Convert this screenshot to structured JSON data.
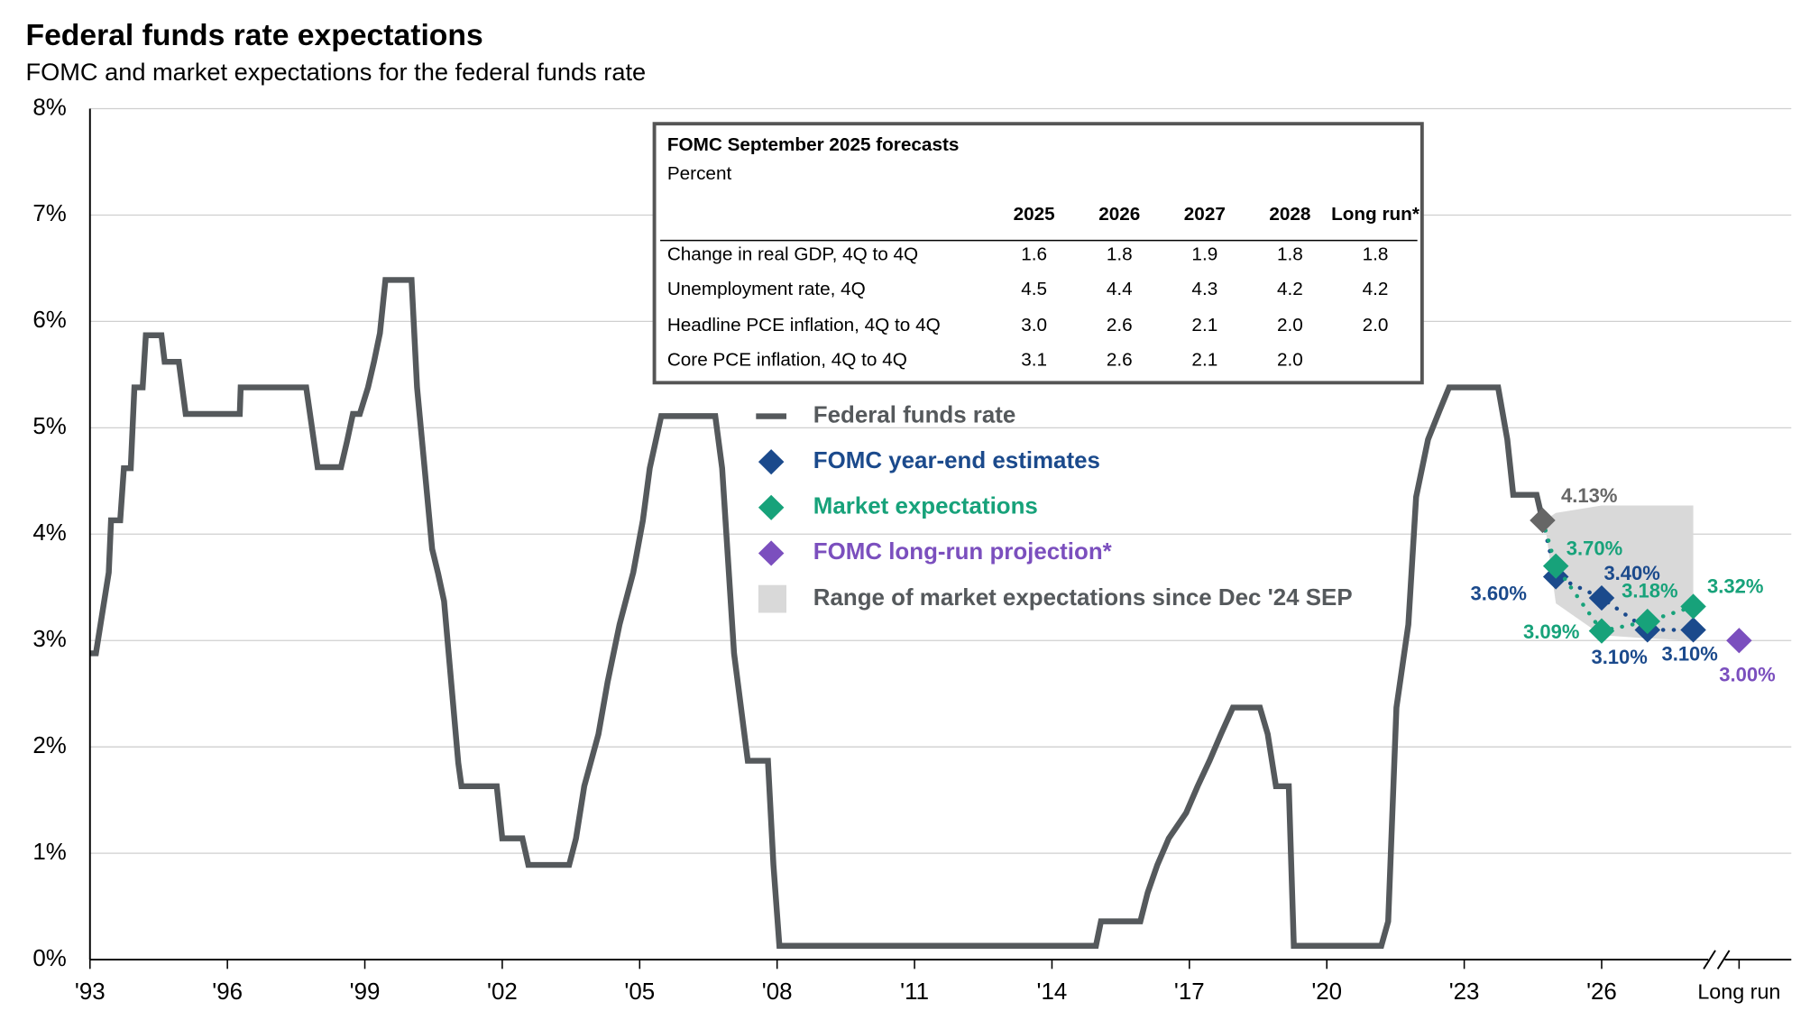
{
  "chart_data": {
    "type": "line",
    "title": "Federal funds rate expectations",
    "subtitle": "FOMC and market expectations for the federal funds rate",
    "xlim": [
      1993,
      2030.14
    ],
    "xticks": [
      {
        "value": 1993,
        "label": "'93"
      },
      {
        "value": 1996,
        "label": "'96"
      },
      {
        "value": 1999,
        "label": "'99"
      },
      {
        "value": 2002,
        "label": "'02"
      },
      {
        "value": 2005,
        "label": "'05"
      },
      {
        "value": 2008,
        "label": "'08"
      },
      {
        "value": 2011,
        "label": "'11"
      },
      {
        "value": 2014,
        "label": "'14"
      },
      {
        "value": 2017,
        "label": "'17"
      },
      {
        "value": 2020,
        "label": "'20"
      },
      {
        "value": 2023,
        "label": "'23"
      },
      {
        "value": 2026,
        "label": "'26"
      },
      {
        "value": 2029,
        "label": "Long run"
      }
    ],
    "ylim": [
      0,
      8
    ],
    "yticks": [
      {
        "value": 0,
        "label": "0%"
      },
      {
        "value": 1,
        "label": "1%"
      },
      {
        "value": 2,
        "label": "2%"
      },
      {
        "value": 3,
        "label": "3%"
      },
      {
        "value": 4,
        "label": "4%"
      },
      {
        "value": 5,
        "label": "5%"
      },
      {
        "value": 6,
        "label": "6%"
      },
      {
        "value": 7,
        "label": "7%"
      },
      {
        "value": 8,
        "label": "8%"
      }
    ],
    "grid": true,
    "series": [
      {
        "name": "Federal funds rate",
        "type": "line",
        "color": "#55595c",
        "x": [
          1993.0,
          1993.13,
          1993.41,
          1993.46,
          1993.66,
          1993.74,
          1993.89,
          1993.97,
          1994.15,
          1994.22,
          1994.56,
          1994.63,
          1994.94,
          1995.09,
          1996.27,
          1996.29,
          1997.72,
          1997.97,
          1998.48,
          1998.61,
          1998.74,
          1998.89,
          1999.07,
          1999.2,
          1999.33,
          1999.45,
          2000.02,
          2000.14,
          2000.47,
          2000.6,
          2000.73,
          2000.93,
          2001.04,
          2001.11,
          2001.88,
          2002.0,
          2002.44,
          2002.57,
          2003.46,
          2003.61,
          2003.79,
          2004.1,
          2004.3,
          2004.56,
          2004.86,
          2005.07,
          2005.22,
          2005.47,
          2006.65,
          2006.8,
          2007.06,
          2007.36,
          2007.8,
          2007.92,
          2008.05,
          2014.96,
          2015.07,
          2015.93,
          2016.09,
          2016.3,
          2016.55,
          2016.93,
          2017.18,
          2017.44,
          2017.69,
          2017.95,
          2018.54,
          2018.71,
          2018.89,
          2019.17,
          2019.28,
          2021.19,
          2021.34,
          2021.52,
          2021.78,
          2021.95,
          2022.21,
          2022.46,
          2022.67,
          2023.74,
          2023.94,
          2024.07,
          2024.58,
          2024.71
        ],
        "values": [
          2.88,
          2.88,
          3.64,
          4.13,
          4.13,
          4.62,
          4.62,
          5.38,
          5.38,
          5.87,
          5.87,
          5.62,
          5.62,
          5.13,
          5.13,
          5.38,
          5.38,
          4.63,
          4.63,
          4.87,
          5.13,
          5.13,
          5.38,
          5.62,
          5.89,
          6.39,
          6.39,
          5.38,
          3.86,
          3.63,
          3.37,
          2.39,
          1.85,
          1.63,
          1.63,
          1.14,
          1.14,
          0.89,
          0.89,
          1.14,
          1.63,
          2.12,
          2.61,
          3.15,
          3.64,
          4.13,
          4.62,
          5.11,
          5.11,
          4.62,
          2.88,
          1.87,
          1.87,
          0.89,
          0.13,
          0.13,
          0.36,
          0.36,
          0.63,
          0.89,
          1.14,
          1.38,
          1.63,
          1.87,
          2.12,
          2.37,
          2.37,
          2.12,
          1.63,
          1.63,
          0.13,
          0.13,
          0.36,
          2.37,
          3.15,
          4.35,
          4.89,
          5.16,
          5.38,
          5.38,
          4.89,
          4.37,
          4.37,
          4.13
        ]
      },
      {
        "name": "FOMC year-end estimates",
        "type": "scatter",
        "color": "#1b4a8c",
        "x": [
          2025,
          2026,
          2027,
          2028
        ],
        "values": [
          3.6,
          3.4,
          3.1,
          3.1
        ],
        "value_labels": [
          "3.60%",
          "3.40%",
          "3.10%",
          "3.10%"
        ]
      },
      {
        "name": "Market expectations",
        "type": "scatter",
        "color": "#17a27a",
        "x": [
          2025,
          2026,
          2027,
          2028
        ],
        "values": [
          3.7,
          3.09,
          3.18,
          3.32
        ],
        "value_labels": [
          "3.70%",
          "3.09%",
          "3.18%",
          "3.32%"
        ]
      },
      {
        "name": "FOMC long-run projection*",
        "type": "scatter",
        "color": "#7b4fbe",
        "x": [
          2029
        ],
        "values": [
          3.0
        ],
        "value_labels": [
          "3.00%"
        ]
      },
      {
        "name": "Range of market expectations since Dec '24 SEP",
        "type": "area",
        "color": "#d9d9d9",
        "x": [
          2024.75,
          2025,
          2026,
          2027,
          2028
        ],
        "upper": [
          4.13,
          4.2,
          4.27,
          4.27,
          4.27
        ],
        "lower": [
          4.13,
          3.35,
          3.05,
          3.02,
          3.0
        ]
      }
    ],
    "current": {
      "x": 2024.71,
      "value": 4.13,
      "value_label": "4.13%",
      "color": "#666666"
    }
  },
  "table": {
    "title": "FOMC September 2025 forecasts",
    "subtitle": "Percent",
    "columns": [
      "2025",
      "2026",
      "2027",
      "2028",
      "Long run*"
    ],
    "rows": [
      {
        "label": "Change in real GDP, 4Q to 4Q",
        "cells": [
          "1.6",
          "1.8",
          "1.9",
          "1.8",
          "1.8"
        ]
      },
      {
        "label": "Unemployment rate, 4Q",
        "cells": [
          "4.5",
          "4.4",
          "4.3",
          "4.2",
          "4.2"
        ]
      },
      {
        "label": "Headline PCE inflation, 4Q to 4Q",
        "cells": [
          "3.0",
          "2.6",
          "2.1",
          "2.0",
          "2.0"
        ]
      },
      {
        "label": "Core PCE inflation, 4Q to 4Q",
        "cells": [
          "3.1",
          "2.6",
          "2.1",
          "2.0",
          null
        ]
      }
    ]
  }
}
